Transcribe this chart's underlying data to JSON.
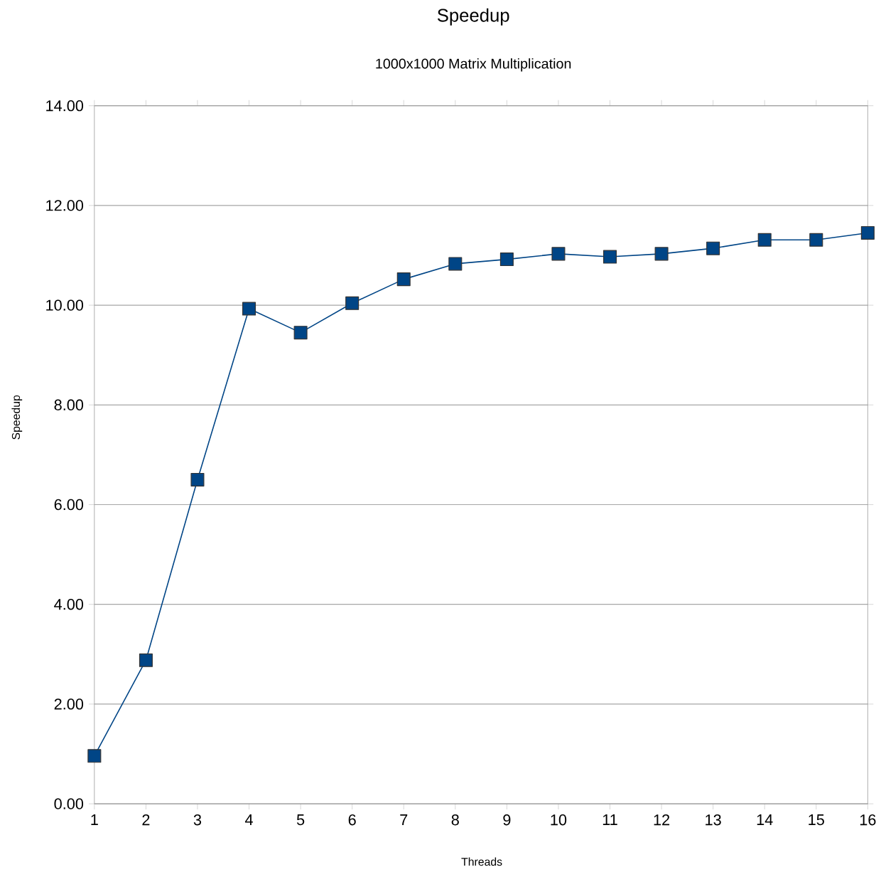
{
  "chart_data": {
    "type": "line",
    "title": "Speedup",
    "subtitle": "1000x1000 Matrix Multiplication",
    "xlabel": "Threads",
    "ylabel": "Speedup",
    "x": [
      1,
      2,
      3,
      4,
      5,
      6,
      7,
      8,
      9,
      10,
      11,
      12,
      13,
      14,
      15,
      16
    ],
    "series": [
      {
        "color": "#004586",
        "values": [
          0.96,
          2.88,
          6.5,
          9.93,
          9.45,
          10.04,
          10.52,
          10.83,
          10.92,
          11.03,
          10.97,
          11.03,
          11.14,
          11.31,
          11.31,
          11.45
        ]
      }
    ],
    "xlim": [
      1,
      16
    ],
    "xticks": [
      1,
      2,
      3,
      4,
      5,
      6,
      7,
      8,
      9,
      10,
      11,
      12,
      13,
      14,
      15,
      16
    ],
    "ylim": [
      0,
      14
    ],
    "yticks": [
      {
        "value": 0,
        "label": "0.00"
      },
      {
        "value": 2,
        "label": "2.00"
      },
      {
        "value": 4,
        "label": "4.00"
      },
      {
        "value": 6,
        "label": "6.00"
      },
      {
        "value": 8,
        "label": "8.00"
      },
      {
        "value": 10,
        "label": "10.00"
      },
      {
        "value": 12,
        "label": "12.00"
      },
      {
        "value": 14,
        "label": "14.00"
      }
    ],
    "grid": "y",
    "marker": "square",
    "line_style": "solid"
  }
}
